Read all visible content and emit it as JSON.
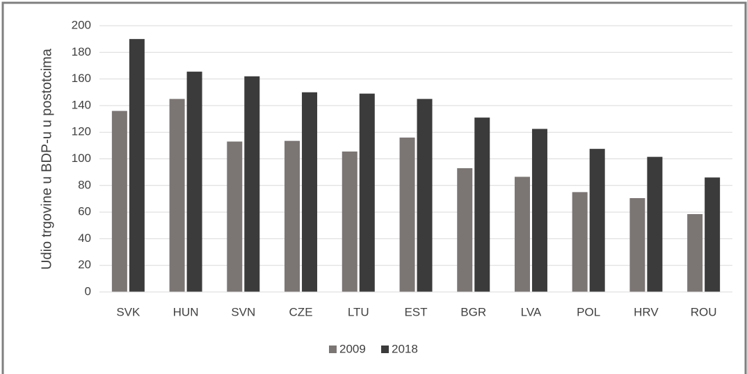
{
  "chart_data": {
    "type": "bar",
    "y_label": "Udio trgovine u BDP-u u postotcima",
    "categories": [
      "SVK",
      "HUN",
      "SVN",
      "CZE",
      "LTU",
      "EST",
      "BGR",
      "LVA",
      "POL",
      "HRV",
      "ROU"
    ],
    "series": [
      {
        "name": "2009",
        "color": "#7b7574",
        "values": [
          136,
          145,
          113,
          113.5,
          105.5,
          116,
          93,
          86.5,
          75,
          70.5,
          58.5
        ]
      },
      {
        "name": "2018",
        "color": "#3b3b3b",
        "values": [
          190,
          165.5,
          162,
          150,
          149,
          145,
          131,
          122.5,
          107.5,
          101.5,
          86
        ]
      }
    ],
    "ylim": [
      0,
      200
    ],
    "yticks": [
      0,
      20,
      40,
      60,
      80,
      100,
      120,
      140,
      160,
      180,
      200
    ],
    "grid": true,
    "legend": "bottom"
  }
}
